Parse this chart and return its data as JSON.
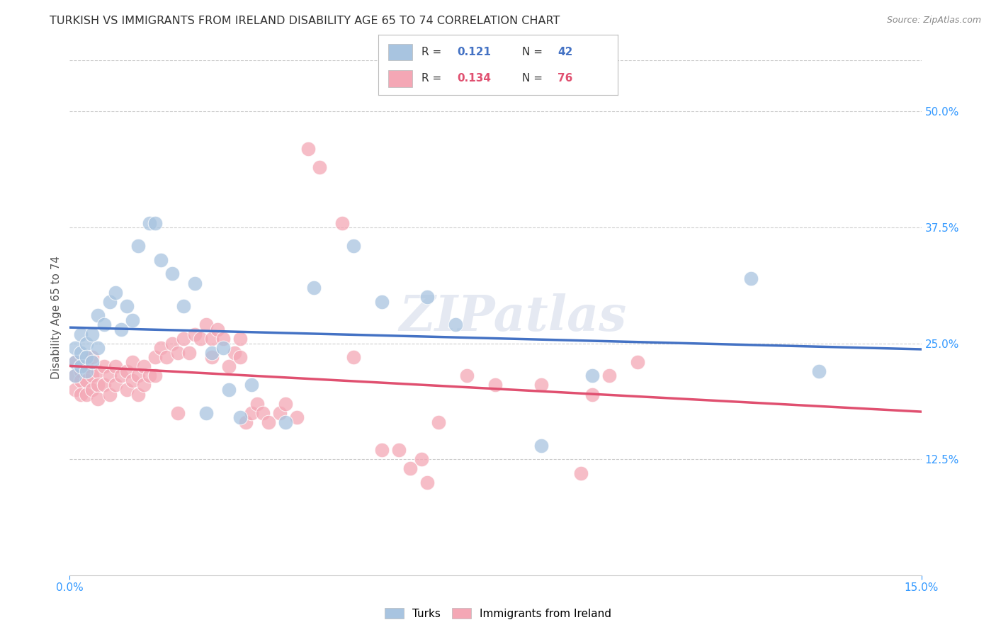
{
  "title": "TURKISH VS IMMIGRANTS FROM IRELAND DISABILITY AGE 65 TO 74 CORRELATION CHART",
  "source": "Source: ZipAtlas.com",
  "ylabel": "Disability Age 65 to 74",
  "xlim": [
    0.0,
    0.15
  ],
  "ylim": [
    0.0,
    0.5556
  ],
  "yticks_right": [
    0.125,
    0.25,
    0.375,
    0.5
  ],
  "ytick_right_labels": [
    "12.5%",
    "25.0%",
    "37.5%",
    "50.0%"
  ],
  "blue_color": "#A8C4E0",
  "pink_color": "#F4A7B5",
  "blue_line_color": "#4472C4",
  "pink_line_color": "#E05070",
  "background_color": "#ffffff",
  "grid_color": "#cccccc",
  "axis_color": "#3399FF",
  "watermark": "ZIPatlas",
  "turks_x": [
    0.001,
    0.001,
    0.001,
    0.002,
    0.002,
    0.002,
    0.003,
    0.003,
    0.003,
    0.004,
    0.004,
    0.005,
    0.005,
    0.006,
    0.007,
    0.008,
    0.009,
    0.01,
    0.011,
    0.012,
    0.014,
    0.015,
    0.016,
    0.018,
    0.02,
    0.022,
    0.024,
    0.025,
    0.027,
    0.028,
    0.03,
    0.032,
    0.038,
    0.043,
    0.05,
    0.055,
    0.063,
    0.068,
    0.083,
    0.092,
    0.12,
    0.132
  ],
  "turks_y": [
    0.245,
    0.23,
    0.215,
    0.26,
    0.24,
    0.225,
    0.25,
    0.235,
    0.22,
    0.26,
    0.23,
    0.245,
    0.28,
    0.27,
    0.295,
    0.305,
    0.265,
    0.29,
    0.275,
    0.355,
    0.38,
    0.38,
    0.34,
    0.325,
    0.29,
    0.315,
    0.175,
    0.24,
    0.245,
    0.2,
    0.17,
    0.205,
    0.165,
    0.31,
    0.355,
    0.295,
    0.3,
    0.27,
    0.14,
    0.215,
    0.32,
    0.22
  ],
  "ireland_x": [
    0.001,
    0.001,
    0.001,
    0.002,
    0.002,
    0.002,
    0.003,
    0.003,
    0.003,
    0.004,
    0.004,
    0.004,
    0.005,
    0.005,
    0.005,
    0.006,
    0.006,
    0.007,
    0.007,
    0.008,
    0.008,
    0.009,
    0.01,
    0.01,
    0.011,
    0.011,
    0.012,
    0.012,
    0.013,
    0.013,
    0.014,
    0.015,
    0.015,
    0.016,
    0.017,
    0.018,
    0.019,
    0.019,
    0.02,
    0.021,
    0.022,
    0.023,
    0.024,
    0.025,
    0.025,
    0.026,
    0.027,
    0.028,
    0.029,
    0.03,
    0.03,
    0.031,
    0.032,
    0.033,
    0.034,
    0.035,
    0.037,
    0.038,
    0.04,
    0.042,
    0.044,
    0.048,
    0.05,
    0.055,
    0.058,
    0.06,
    0.062,
    0.063,
    0.065,
    0.07,
    0.075,
    0.083,
    0.09,
    0.092,
    0.095,
    0.1
  ],
  "ireland_y": [
    0.23,
    0.215,
    0.2,
    0.22,
    0.21,
    0.195,
    0.225,
    0.21,
    0.195,
    0.235,
    0.215,
    0.2,
    0.22,
    0.205,
    0.19,
    0.225,
    0.205,
    0.215,
    0.195,
    0.225,
    0.205,
    0.215,
    0.22,
    0.2,
    0.23,
    0.21,
    0.215,
    0.195,
    0.225,
    0.205,
    0.215,
    0.235,
    0.215,
    0.245,
    0.235,
    0.25,
    0.175,
    0.24,
    0.255,
    0.24,
    0.26,
    0.255,
    0.27,
    0.255,
    0.235,
    0.265,
    0.255,
    0.225,
    0.24,
    0.255,
    0.235,
    0.165,
    0.175,
    0.185,
    0.175,
    0.165,
    0.175,
    0.185,
    0.17,
    0.46,
    0.44,
    0.38,
    0.235,
    0.135,
    0.135,
    0.115,
    0.125,
    0.1,
    0.165,
    0.215,
    0.205,
    0.205,
    0.11,
    0.195,
    0.215,
    0.23
  ]
}
